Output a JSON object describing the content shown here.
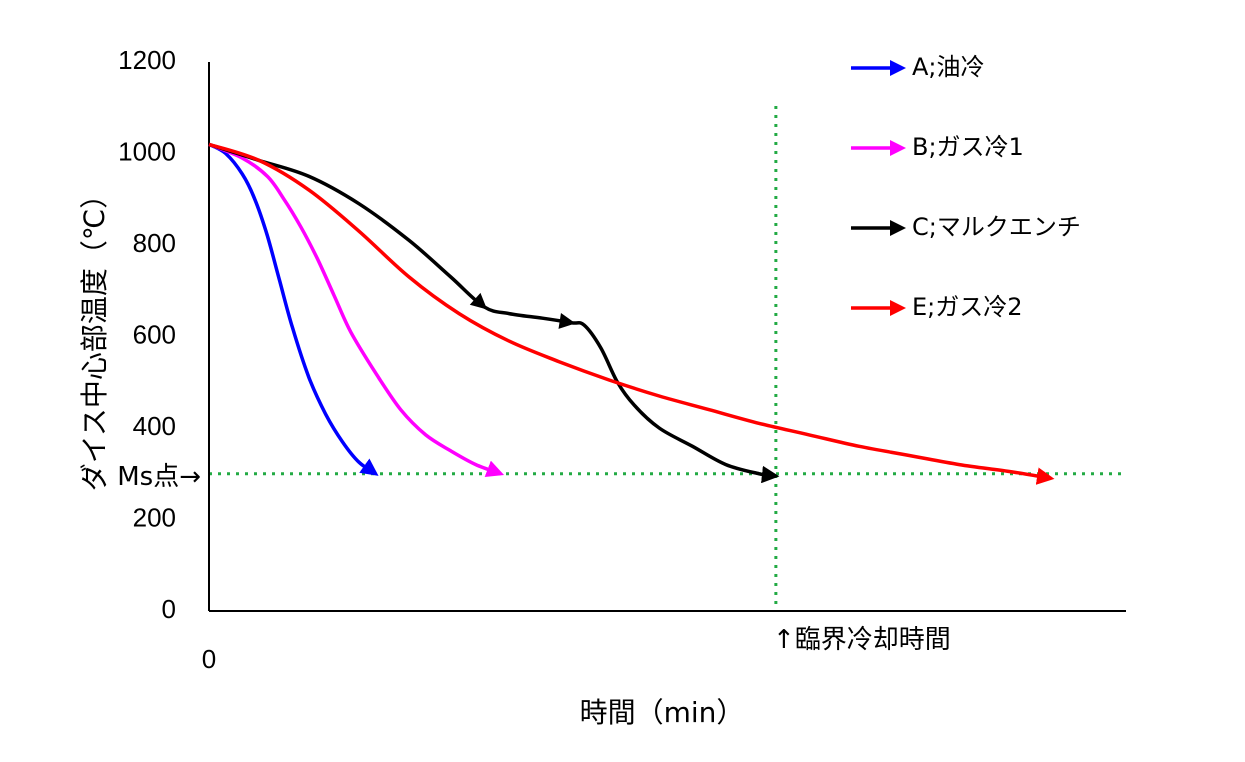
{
  "chart_data": {
    "type": "line",
    "xlabel": "時間（min）",
    "ylabel": "ダイス中心部温度（℃）",
    "ylim": [
      0,
      1200
    ],
    "y_ticks": [
      0,
      200,
      400,
      600,
      800,
      1000,
      1200
    ],
    "x_tick_labels": [
      "0"
    ],
    "grid": false,
    "legend_position": "top-right",
    "annotations": {
      "ms_point": "Ms点→",
      "critical_time": "↑臨界冷却時間",
      "ms_temperature": 300
    },
    "colors": {
      "guide_line": "#22aa44",
      "axis": "#000000"
    },
    "series": [
      {
        "name": "A;油冷",
        "color": "#0000ff",
        "x": [
          0,
          2,
          4,
          5.5,
          7,
          8.5,
          10,
          12,
          14,
          16,
          18,
          20
        ],
        "y": [
          1020,
          1000,
          955,
          900,
          820,
          720,
          620,
          510,
          430,
          370,
          325,
          300
        ]
      },
      {
        "name": "B;ガス冷1",
        "color": "#ff00ff",
        "x": [
          0,
          4,
          7,
          9,
          11,
          13,
          15,
          17,
          20,
          23,
          26,
          29,
          32,
          35
        ],
        "y": [
          1020,
          990,
          950,
          900,
          840,
          770,
          690,
          610,
          520,
          440,
          385,
          350,
          320,
          300
        ]
      },
      {
        "name": "C;マルクエンチ",
        "color": "#000000",
        "x": [
          0,
          6,
          12,
          18,
          24,
          29,
          33,
          36,
          40,
          43.5,
          45,
          47,
          49,
          51,
          54,
          58,
          62,
          66,
          68
        ],
        "y": [
          1020,
          985,
          950,
          890,
          810,
          730,
          665,
          650,
          640,
          630,
          625,
          575,
          500,
          450,
          400,
          360,
          320,
          300,
          295
        ]
      },
      {
        "name": "E;ガス冷2",
        "color": "#ff0000",
        "x": [
          0,
          6,
          12,
          18,
          24,
          30,
          36,
          42,
          48,
          54,
          60,
          66,
          72,
          78,
          84,
          90,
          96,
          101
        ],
        "y": [
          1020,
          985,
          920,
          830,
          730,
          650,
          590,
          545,
          505,
          470,
          440,
          410,
          385,
          360,
          340,
          320,
          305,
          290
        ]
      }
    ]
  }
}
